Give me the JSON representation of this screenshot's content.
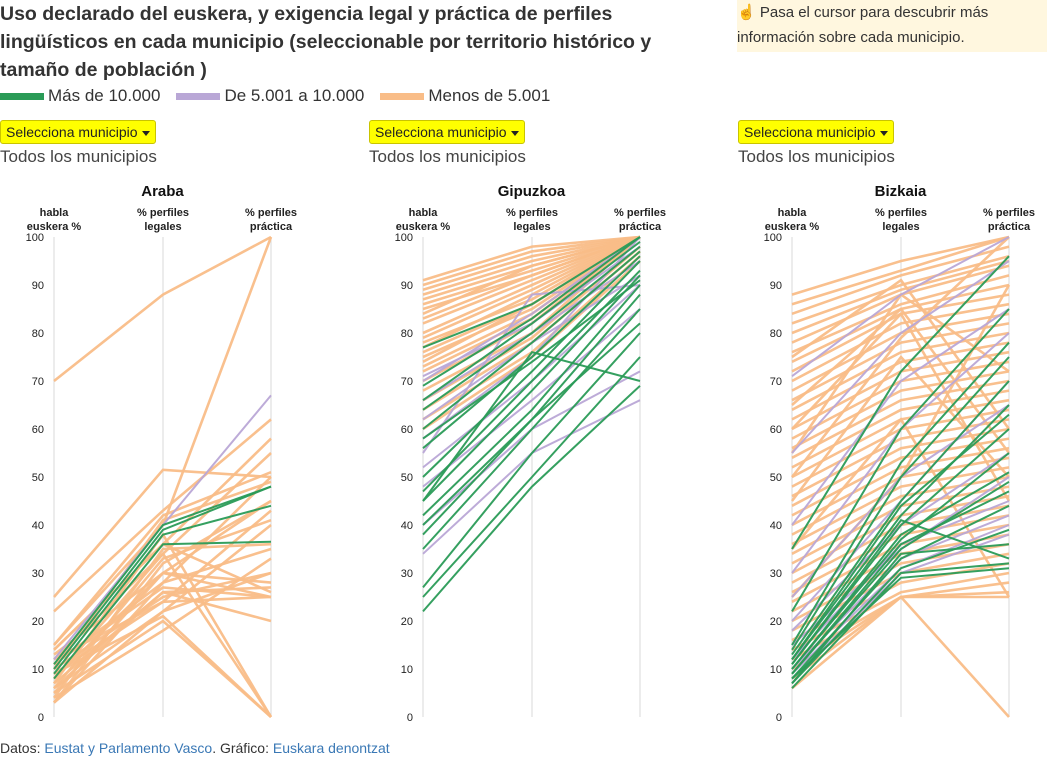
{
  "title": "Uso declarado del euskera, y exigencia legal y práctica de perfiles lingüísticos en cada municipio (seleccionable por territorio histórico y tamaño de población )",
  "hint": "Pasa el cursor para descubrir más información sobre cada municipio.",
  "hint_icon": "pointing-hand-icon",
  "legend": [
    {
      "label": "Más de 10.000",
      "color": "#2a9b57"
    },
    {
      "label": "De 5.001 a 10.000",
      "color": "#b9a7d6"
    },
    {
      "label": "Menos de 5.001",
      "color": "#f9bd88"
    }
  ],
  "panels": [
    {
      "select_label": "Selecciona municipio",
      "subtitle": "Todos los municipios"
    },
    {
      "select_label": "Selecciona municipio",
      "subtitle": "Todos los municipios"
    },
    {
      "select_label": "Selecciona municipio",
      "subtitle": "Todos los municipios"
    }
  ],
  "footer": {
    "prefix": "Datos: ",
    "source": "Eustat y Parlamento Vasco",
    "middle": ". Gráfico: ",
    "author": "Euskara denontzat"
  },
  "chart_data": [
    {
      "type": "parallel-coordinates",
      "title": "Araba",
      "axes": [
        "habla\neuskera %",
        "% perfiles\nlegales",
        "% perfiles\npráctica"
      ],
      "ylim": [
        0,
        100
      ],
      "ticks": [
        0,
        10,
        20,
        30,
        40,
        50,
        60,
        70,
        80,
        90,
        100
      ],
      "series": [
        {
          "group": "big",
          "values": [
            [
              10,
              39,
              48
            ],
            [
              9,
              38,
              44
            ],
            [
              8,
              36,
              36.5
            ],
            [
              11,
              40,
              48
            ]
          ]
        },
        {
          "group": "med",
          "values": [
            [
              12,
              40,
              67
            ]
          ]
        },
        {
          "group": "small",
          "values": [
            [
              70,
              88,
              100
            ],
            [
              25,
              51.5,
              50
            ],
            [
              22,
              43,
              62
            ],
            [
              15,
              40,
              100
            ],
            [
              14,
              36,
              58
            ],
            [
              13,
              30,
              45
            ],
            [
              12,
              34,
              0
            ],
            [
              11,
              28,
              35
            ],
            [
              10,
              25,
              30
            ],
            [
              9,
              24,
              25
            ],
            [
              8,
              30,
              28
            ],
            [
              7,
              26,
              20
            ],
            [
              6,
              22,
              40
            ],
            [
              5,
              20,
              0
            ],
            [
              4,
              18,
              33
            ],
            [
              3,
              28,
              50
            ],
            [
              3,
              32,
              45
            ],
            [
              6,
              26,
              27
            ],
            [
              8,
              34,
              55
            ],
            [
              15,
              42,
              51
            ],
            [
              5,
              30,
              25
            ],
            [
              7,
              38,
              0
            ],
            [
              12,
              24,
              43
            ],
            [
              9,
              21,
              0
            ],
            [
              4,
              35,
              36
            ],
            [
              11,
              27,
              25
            ],
            [
              6,
              33,
              41
            ],
            [
              14,
              36,
              26
            ],
            [
              3,
              22,
              30
            ],
            [
              10,
              41,
              49
            ]
          ]
        }
      ]
    },
    {
      "type": "parallel-coordinates",
      "title": "Gipuzkoa",
      "axes": [
        "habla\neuskera %",
        "% perfiles\nlegales",
        "% perfiles\npráctica"
      ],
      "ylim": [
        0,
        100
      ],
      "ticks": [
        0,
        10,
        20,
        30,
        40,
        50,
        60,
        70,
        80,
        90,
        100
      ],
      "series": [
        {
          "group": "big",
          "values": [
            [
              22,
              48,
              69
            ],
            [
              25,
              50,
              75
            ],
            [
              27,
              55,
              80
            ],
            [
              35,
              60,
              85
            ],
            [
              40,
              62,
              88
            ],
            [
              42,
              64,
              90
            ],
            [
              45,
              68,
              92
            ],
            [
              47,
              70,
              93
            ],
            [
              50,
              72,
              95
            ],
            [
              56,
              75,
              96
            ],
            [
              60,
              78,
              97
            ],
            [
              64,
              80,
              98
            ],
            [
              66,
              82,
              99
            ],
            [
              69,
              83,
              100
            ],
            [
              45,
              76,
              70
            ],
            [
              38,
              62,
              82
            ],
            [
              77,
              86,
              100
            ],
            [
              58,
              74,
              91
            ]
          ]
        },
        {
          "group": "med",
          "values": [
            [
              34,
              55,
              66
            ],
            [
              40,
              60,
              72
            ],
            [
              52,
              70,
              90
            ],
            [
              58,
              75,
              100
            ],
            [
              62,
              78,
              92
            ],
            [
              66,
              80,
              95
            ],
            [
              70,
              84,
              100
            ],
            [
              48,
              66,
              85
            ],
            [
              55,
              88,
              90
            ],
            [
              71,
              82,
              98
            ]
          ]
        },
        {
          "group": "small",
          "values": [
            [
              91,
              98,
              100
            ],
            [
              89,
              96,
              100
            ],
            [
              88,
              95,
              100
            ],
            [
              86,
              93,
              100
            ],
            [
              85,
              92,
              100
            ],
            [
              84,
              94,
              100
            ],
            [
              82,
              91,
              100
            ],
            [
              80,
              90,
              100
            ],
            [
              79,
              89,
              100
            ],
            [
              78,
              87,
              100
            ],
            [
              76,
              86,
              100
            ],
            [
              75,
              85,
              100
            ],
            [
              73,
              84,
              100
            ],
            [
              72,
              83,
              100
            ],
            [
              70,
              82,
              100
            ],
            [
              68,
              80,
              100
            ],
            [
              66,
              79,
              98
            ],
            [
              64,
              78,
              97
            ],
            [
              62,
              76,
              96
            ],
            [
              60,
              75,
              95
            ],
            [
              90,
              97,
              100
            ],
            [
              87,
              94,
              100
            ],
            [
              83,
              92,
              100
            ],
            [
              77,
              88,
              100
            ],
            [
              74,
              86,
              100
            ]
          ]
        }
      ]
    },
    {
      "type": "parallel-coordinates",
      "title": "Bizkaia",
      "axes": [
        "habla\neuskera %",
        "% perfiles\nlegales",
        "% perfiles\npráctica"
      ],
      "ylim": [
        0,
        100
      ],
      "ticks": [
        0,
        10,
        20,
        30,
        40,
        50,
        60,
        70,
        80,
        90,
        100
      ],
      "series": [
        {
          "group": "big",
          "values": [
            [
              6,
              30,
              32
            ],
            [
              7,
              31,
              39
            ],
            [
              8,
              33,
              44
            ],
            [
              9,
              35,
              49
            ],
            [
              10,
              37,
              55
            ],
            [
              11,
              40,
              60
            ],
            [
              12,
              42,
              65
            ],
            [
              13,
              45,
              70
            ],
            [
              14,
              50,
              75
            ],
            [
              15,
              53,
              78
            ],
            [
              22,
              60,
              85
            ],
            [
              35,
              72,
              96
            ],
            [
              8,
              29,
              31
            ],
            [
              10,
              38,
              51
            ],
            [
              7,
              34,
              36
            ],
            [
              12,
              44,
              63
            ],
            [
              9,
              36,
              47
            ],
            [
              11,
              41,
              33
            ]
          ]
        },
        {
          "group": "med",
          "values": [
            [
              8,
              30,
              38
            ],
            [
              10,
              33,
              42
            ],
            [
              12,
              36,
              45
            ],
            [
              18,
              40,
              55
            ],
            [
              25,
              50,
              65
            ],
            [
              40,
              70,
              85
            ],
            [
              55,
              80,
              95
            ],
            [
              71,
              88,
              100
            ],
            [
              15,
              35,
              50
            ],
            [
              20,
              45,
              70
            ],
            [
              30,
              60,
              80
            ],
            [
              9,
              31,
              40
            ]
          ]
        },
        {
          "group": "small",
          "values": [
            [
              88,
              95,
              100
            ],
            [
              86,
              93,
              100
            ],
            [
              84,
              92,
              98
            ],
            [
              82,
              90,
              96
            ],
            [
              80,
              89,
              95
            ],
            [
              78,
              88,
              94
            ],
            [
              76,
              86,
              92
            ],
            [
              74,
              85,
              90
            ],
            [
              72,
              84,
              88
            ],
            [
              70,
              82,
              86
            ],
            [
              68,
              80,
              84
            ],
            [
              66,
              78,
              82
            ],
            [
              64,
              76,
              80
            ],
            [
              62,
              74,
              78
            ],
            [
              60,
              72,
              76
            ],
            [
              58,
              70,
              74
            ],
            [
              56,
              68,
              72
            ],
            [
              54,
              66,
              70
            ],
            [
              52,
              64,
              68
            ],
            [
              50,
              62,
              66
            ],
            [
              48,
              60,
              64
            ],
            [
              46,
              58,
              62
            ],
            [
              44,
              56,
              60
            ],
            [
              42,
              54,
              58
            ],
            [
              40,
              52,
              56
            ],
            [
              38,
              50,
              54
            ],
            [
              36,
              48,
              52
            ],
            [
              34,
              46,
              50
            ],
            [
              32,
              44,
              48
            ],
            [
              30,
              42,
              46
            ],
            [
              28,
              40,
              44
            ],
            [
              26,
              38,
              42
            ],
            [
              24,
              36,
              40
            ],
            [
              22,
              34,
              38
            ],
            [
              20,
              32,
              36
            ],
            [
              18,
              30,
              34
            ],
            [
              16,
              28,
              32
            ],
            [
              14,
              26,
              30
            ],
            [
              12,
              25,
              28
            ],
            [
              10,
              25,
              26
            ],
            [
              8,
              25,
              25
            ],
            [
              6,
              25,
              0
            ],
            [
              45,
              75,
              50
            ],
            [
              55,
              88,
              72
            ],
            [
              35,
              62,
              25
            ],
            [
              65,
              85,
              55
            ],
            [
              25,
              50,
              90
            ],
            [
              50,
              79,
              100
            ],
            [
              75,
              91,
              60
            ],
            [
              60,
              84,
              45
            ]
          ]
        }
      ]
    }
  ]
}
